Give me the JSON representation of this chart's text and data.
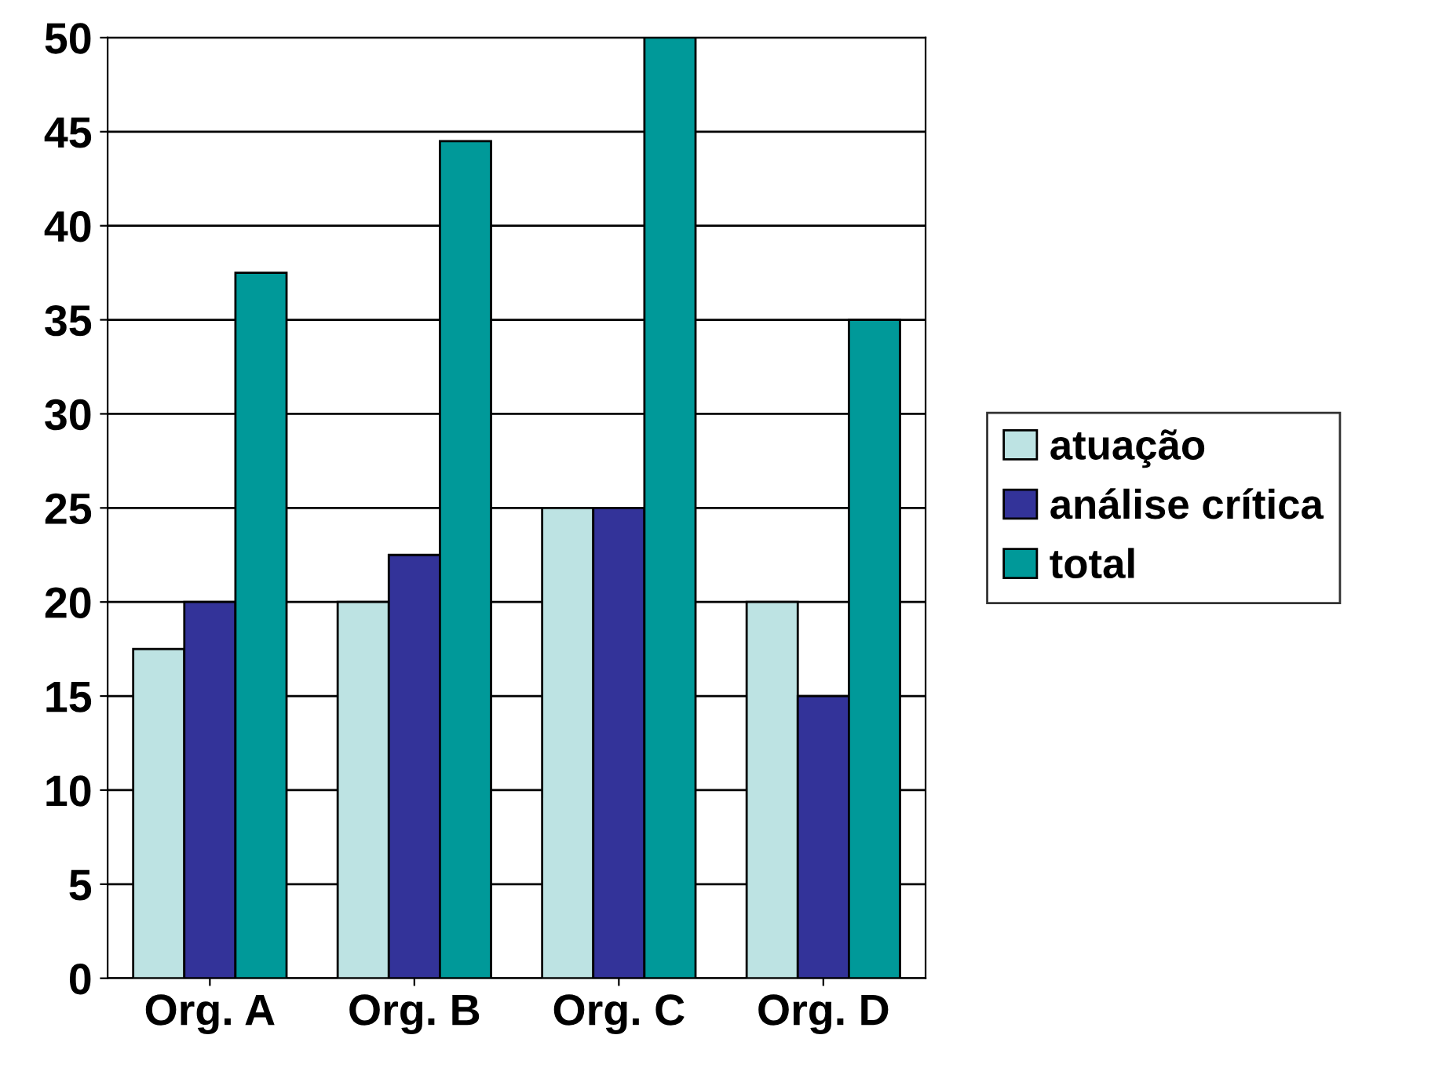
{
  "chart_data": {
    "type": "bar",
    "categories": [
      "Org. A",
      "Org. B",
      "Org. C",
      "Org. D"
    ],
    "series": [
      {
        "name": "atuação",
        "color": "#bde3e3",
        "values": [
          17.5,
          20,
          25,
          20
        ]
      },
      {
        "name": "análise crítica",
        "color": "#333399",
        "values": [
          20,
          22.5,
          25,
          15
        ]
      },
      {
        "name": "total",
        "color": "#009999",
        "values": [
          37.5,
          44.5,
          50,
          35
        ]
      }
    ],
    "ylim": [
      0,
      50
    ],
    "yticks": [
      0,
      5,
      10,
      15,
      20,
      25,
      30,
      35,
      40,
      45,
      50
    ],
    "grid": "y",
    "legend": "right"
  }
}
